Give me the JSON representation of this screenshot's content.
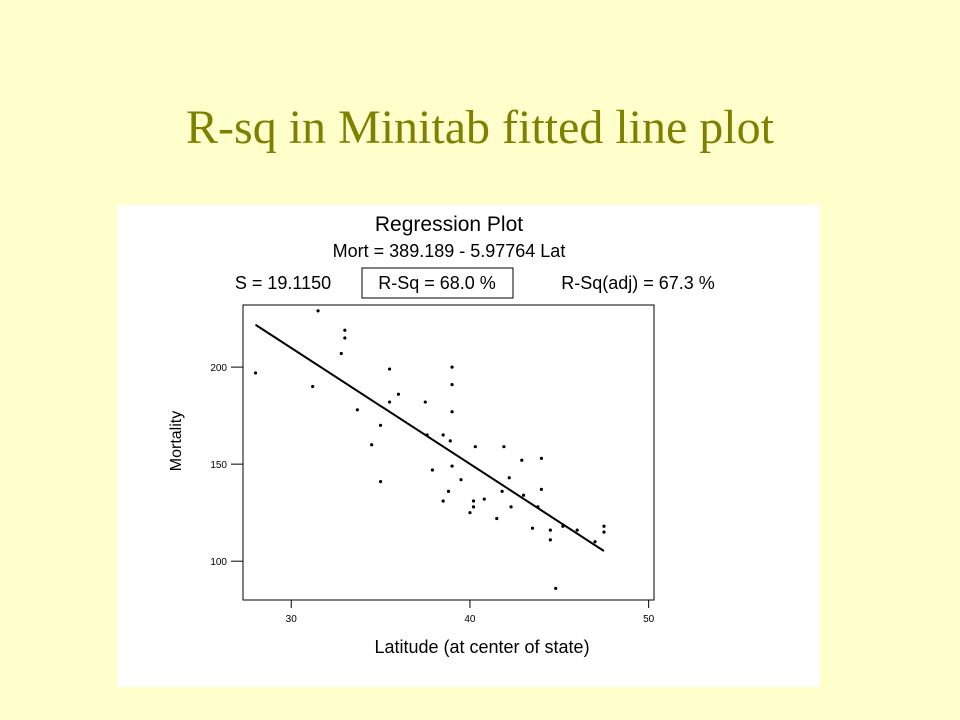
{
  "slide": {
    "title": "R-sq in Minitab fitted line plot"
  },
  "chart_data": {
    "type": "scatter",
    "title": "Regression Plot",
    "subtitle": "Mort = 389.189 - 5.97764 Lat",
    "stats": {
      "s": "S = 19.1150",
      "rsq": "R-Sq = 68.0 %",
      "rsq_adj": "R-Sq(adj) = 67.3 %"
    },
    "xlabel": "Latitude (at center of state)",
    "ylabel": "Mortality",
    "xlim": [
      27.3,
      50.3
    ],
    "ylim": [
      80,
      232
    ],
    "xticks": [
      30,
      40,
      50
    ],
    "yticks": [
      100,
      150,
      200
    ],
    "grid": false,
    "fit_line": {
      "intercept": 389.189,
      "slope": -5.97764,
      "x_range": [
        28.0,
        47.5
      ]
    },
    "points": [
      {
        "x": 28.0,
        "y": 197
      },
      {
        "x": 31.2,
        "y": 190
      },
      {
        "x": 31.5,
        "y": 229
      },
      {
        "x": 32.8,
        "y": 207
      },
      {
        "x": 33.0,
        "y": 215
      },
      {
        "x": 33.0,
        "y": 219
      },
      {
        "x": 33.7,
        "y": 178
      },
      {
        "x": 34.5,
        "y": 160
      },
      {
        "x": 35.0,
        "y": 170
      },
      {
        "x": 35.0,
        "y": 141
      },
      {
        "x": 35.5,
        "y": 182
      },
      {
        "x": 35.5,
        "y": 199
      },
      {
        "x": 36.0,
        "y": 186
      },
      {
        "x": 37.5,
        "y": 182
      },
      {
        "x": 37.6,
        "y": 165
      },
      {
        "x": 37.9,
        "y": 147
      },
      {
        "x": 38.5,
        "y": 165
      },
      {
        "x": 38.5,
        "y": 131
      },
      {
        "x": 38.8,
        "y": 136
      },
      {
        "x": 38.9,
        "y": 162
      },
      {
        "x": 39.0,
        "y": 149
      },
      {
        "x": 39.0,
        "y": 200
      },
      {
        "x": 39.0,
        "y": 191
      },
      {
        "x": 39.0,
        "y": 177
      },
      {
        "x": 39.5,
        "y": 142
      },
      {
        "x": 40.0,
        "y": 125
      },
      {
        "x": 40.2,
        "y": 128
      },
      {
        "x": 40.2,
        "y": 131
      },
      {
        "x": 40.3,
        "y": 159
      },
      {
        "x": 40.8,
        "y": 132
      },
      {
        "x": 41.5,
        "y": 122
      },
      {
        "x": 41.8,
        "y": 136
      },
      {
        "x": 41.9,
        "y": 159
      },
      {
        "x": 42.2,
        "y": 143
      },
      {
        "x": 42.3,
        "y": 128
      },
      {
        "x": 42.9,
        "y": 152
      },
      {
        "x": 43.0,
        "y": 134
      },
      {
        "x": 43.5,
        "y": 117
      },
      {
        "x": 43.8,
        "y": 128
      },
      {
        "x": 44.0,
        "y": 153
      },
      {
        "x": 44.0,
        "y": 137
      },
      {
        "x": 44.5,
        "y": 111
      },
      {
        "x": 44.5,
        "y": 116
      },
      {
        "x": 44.8,
        "y": 86
      },
      {
        "x": 45.2,
        "y": 118
      },
      {
        "x": 46.0,
        "y": 116
      },
      {
        "x": 47.0,
        "y": 110
      },
      {
        "x": 47.5,
        "y": 115
      },
      {
        "x": 47.5,
        "y": 118
      }
    ]
  }
}
